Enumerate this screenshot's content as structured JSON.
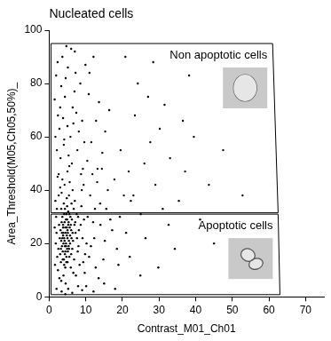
{
  "chart_data": {
    "type": "scatter",
    "title": "Nucleated cells",
    "x_label": "Contrast_M01_Ch01",
    "y_label": "Area_Threshold(M05,Ch05,50%)_",
    "xlim": [
      0,
      75
    ],
    "ylim": [
      0,
      100
    ],
    "xticks": [
      0,
      10,
      20,
      30,
      40,
      50,
      60,
      70
    ],
    "yticks": [
      0,
      20,
      40,
      60,
      80,
      100
    ],
    "grid": false,
    "color": "#000000",
    "marker": "circle",
    "x": [
      3.2,
      4.1,
      5.0,
      3.8,
      4.6,
      5.4,
      3.5,
      4.9,
      4.3,
      5.7,
      3.9,
      4.4,
      5.1,
      3.6,
      4.8,
      5.9,
      4.0,
      3.3,
      5.3,
      4.7,
      3.1,
      6.1,
      4.2,
      5.5,
      3.7,
      4.5,
      5.2,
      2.9,
      6.3,
      4.1,
      3.4,
      5.8,
      4.6,
      3.0,
      5.0,
      6.0,
      4.3,
      3.8,
      5.6,
      4.9,
      2.7,
      6.5,
      4.4,
      3.5,
      5.3,
      4.0,
      3.2,
      5.1,
      6.2,
      4.7,
      2.1,
      7.2,
      1.8,
      8.0,
      2.4,
      7.5,
      6.8,
      1.5,
      8.6,
      2.6,
      7.0,
      6.6,
      2.2,
      9.1,
      3.0,
      7.8,
      1.9,
      6.4,
      8.3,
      2.8,
      5.4,
      9.5,
      3.6,
      7.3,
      1.6,
      4.2,
      8.8,
      6.9,
      2.3,
      5.9,
      7.6,
      3.3,
      9.8,
      4.8,
      1.7,
      6.7,
      8.1,
      2.0,
      5.6,
      3.9,
      10.2,
      7.1,
      4.5,
      8.9,
      2.5,
      6.1,
      9.3,
      3.4,
      5.0,
      7.9,
      3.1,
      5.8,
      2.4,
      7.7,
      4.3,
      1.9,
      9.2,
      6.4,
      3.6,
      11.5,
      2.8,
      8.5,
      5.1,
      12.8,
      4.0,
      7.0,
      1.5,
      10.4,
      6.6,
      3.3,
      13.6,
      5.5,
      9.9,
      2.1,
      8.1,
      4.7,
      14.5,
      6.9,
      3.8,
      11.0,
      2.6,
      7.4,
      5.3,
      12.1,
      1.7,
      9.6,
      4.5,
      15.3,
      6.2,
      3.0,
      10.8,
      8.7,
      5.0,
      2.3,
      13.2,
      7.2,
      4.1,
      16.4,
      6.0,
      9.0,
      10.5,
      12.3,
      11.2,
      14.0,
      9.7,
      13.1,
      15.6,
      10.9,
      17.2,
      12.7,
      16.0,
      11.8,
      18.5,
      13.9,
      9.4,
      19.3,
      14.8,
      12.0,
      20.4,
      15.2,
      10.1,
      17.8,
      13.5,
      16.7,
      11.4,
      21.0,
      14.4,
      18.9,
      12.5,
      22.3,
      19.5,
      23.4,
      21.7,
      25.0,
      27.6,
      24.2,
      29.0,
      22.0,
      31.5,
      26.3,
      33.0,
      28.4,
      35.4,
      20.8,
      30.2,
      24.9,
      37.1,
      32.6,
      27.0,
      39.5,
      34.3,
      23.0,
      41.2,
      36.5,
      29.8,
      43.6,
      26.0,
      38.2,
      31.0,
      45.0,
      3.4,
      5.2,
      7.9,
      2.0,
      12.1,
      6.3,
      15.0,
      9.0,
      4.4,
      18.0,
      4.2,
      4.8,
      3.9,
      5.4,
      4.6,
      5.0,
      3.7,
      4.1,
      5.7,
      4.4,
      3.3,
      6.0,
      4.9,
      3.6,
      5.2,
      4.3,
      5.5,
      3.8,
      4.7,
      6.4,
      47.5,
      50.2,
      52.8
    ],
    "values": [
      18,
      22,
      25,
      27,
      19,
      21,
      24,
      29,
      16,
      23,
      20,
      26,
      17,
      30,
      23,
      27,
      14,
      21,
      19,
      31,
      25,
      22,
      28,
      15,
      17,
      24,
      32,
      22,
      18,
      12,
      28,
      30,
      20,
      16,
      13,
      25,
      33,
      23,
      26,
      18,
      27,
      21,
      11,
      19,
      28,
      35,
      13,
      24,
      29,
      15,
      33,
      24,
      20,
      19,
      10,
      31,
      14,
      26,
      27,
      38,
      36,
      9,
      15,
      22,
      41,
      17,
      30,
      40,
      12,
      7,
      38,
      29,
      44,
      8,
      12,
      42,
      34,
      27,
      45,
      11,
      22,
      6,
      16,
      37,
      36,
      33,
      25,
      24,
      43,
      8,
      20,
      28,
      5,
      40,
      18,
      35,
      13,
      39,
      47,
      30,
      52,
      60,
      68,
      55,
      75,
      83,
      48,
      71,
      90,
      58,
      63,
      80,
      86,
      66,
      57,
      92,
      74,
      51,
      65,
      79,
      73,
      49,
      87,
      55,
      62,
      94,
      54,
      77,
      67,
      84,
      46,
      69,
      53,
      90,
      60,
      58,
      82,
      62,
      50,
      71,
      76,
      46,
      64,
      88,
      48,
      84,
      59,
      70,
      93,
      66,
      30,
      22,
      38,
      27,
      9,
      43,
      33,
      15,
      25,
      11,
      40,
      46,
      18,
      35,
      42,
      30,
      14,
      28,
      38,
      21,
      4,
      44,
      7,
      29,
      19,
      24,
      48,
      12,
      33,
      36,
      55,
      68,
      47,
      31,
      58,
      80,
      42,
      15,
      72,
      22,
      52,
      88,
      36,
      90,
      63,
      8,
      47,
      27,
      75,
      60,
      18,
      38,
      29,
      66,
      11,
      42,
      50,
      83,
      33,
      20,
      2,
      3,
      4,
      3,
      2,
      1.5,
      5,
      2.5,
      1,
      3,
      21,
      26,
      24,
      18,
      29,
      22,
      14,
      31,
      20,
      17,
      33,
      16,
      34,
      22,
      27,
      19,
      31,
      26,
      13,
      24,
      55,
      14,
      38
    ],
    "gates": [
      {
        "label": "Non apoptotic cells",
        "x": [
          0.5,
          61,
          62.5,
          0.5,
          0.5
        ],
        "y": [
          95,
          95,
          31.5,
          31.5,
          95
        ]
      },
      {
        "label": "Apoptotic cells",
        "x": [
          0.5,
          62.5,
          63,
          0.5,
          0.5
        ],
        "y": [
          31,
          31,
          0.8,
          0.8,
          31
        ]
      }
    ]
  }
}
